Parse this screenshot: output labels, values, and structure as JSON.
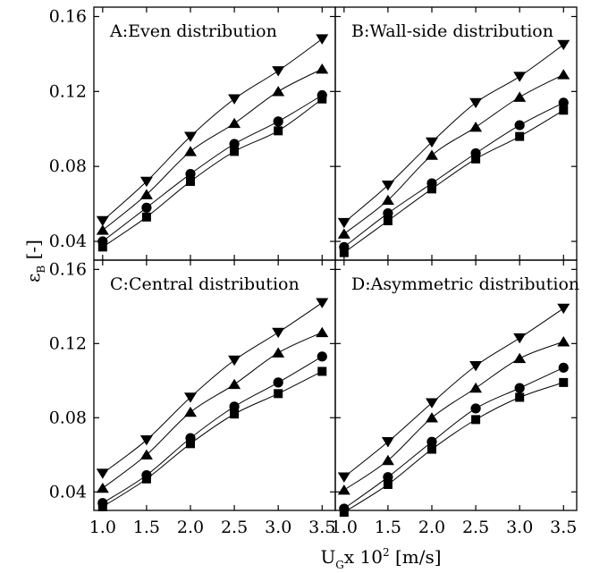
{
  "figure": {
    "xlabel": "U",
    "xlabel_sub": "G",
    "xlabel_rest": "x 10",
    "xlabel_sup": "2",
    "xlabel_unit": " [m/s]",
    "ylabel": "ε",
    "ylabel_sub": "B",
    "ylabel_unit": " [-]"
  },
  "chart_data": [
    {
      "type": "line",
      "title": "A:Even distribution",
      "xlim": [
        0.9,
        3.65
      ],
      "ylim": [
        0.03,
        0.165
      ],
      "x_ticks": [
        "1.0",
        "1.5",
        "2.0",
        "2.5",
        "3.0",
        "3.5"
      ],
      "y_ticks": [
        "0.04",
        "0.08",
        "0.12",
        "0.16"
      ],
      "x": [
        1.0,
        1.5,
        2.0,
        2.5,
        3.0,
        3.5
      ],
      "series": [
        {
          "marker": "triangle-down",
          "values": [
            0.051,
            0.072,
            0.096,
            0.116,
            0.131,
            0.148
          ]
        },
        {
          "marker": "triangle-up",
          "values": [
            0.046,
            0.065,
            0.088,
            0.103,
            0.12,
            0.132
          ]
        },
        {
          "marker": "circle",
          "values": [
            0.04,
            0.058,
            0.076,
            0.092,
            0.104,
            0.118
          ]
        },
        {
          "marker": "square",
          "values": [
            0.037,
            0.053,
            0.072,
            0.088,
            0.099,
            0.116
          ]
        }
      ]
    },
    {
      "type": "line",
      "title": "B:Wall-side distribution",
      "xlim": [
        0.9,
        3.65
      ],
      "ylim": [
        0.03,
        0.165
      ],
      "x_ticks": [
        "1.0",
        "1.5",
        "2.0",
        "2.5",
        "3.0",
        "3.5"
      ],
      "y_ticks": [
        "0.04",
        "0.08",
        "0.12",
        "0.16"
      ],
      "x": [
        1.0,
        1.5,
        2.0,
        2.5,
        3.0,
        3.5
      ],
      "series": [
        {
          "marker": "triangle-down",
          "values": [
            0.05,
            0.07,
            0.093,
            0.114,
            0.128,
            0.145
          ]
        },
        {
          "marker": "triangle-up",
          "values": [
            0.044,
            0.062,
            0.086,
            0.101,
            0.117,
            0.129
          ]
        },
        {
          "marker": "circle",
          "values": [
            0.037,
            0.055,
            0.071,
            0.087,
            0.102,
            0.114
          ]
        },
        {
          "marker": "square",
          "values": [
            0.034,
            0.051,
            0.068,
            0.084,
            0.096,
            0.11
          ]
        }
      ]
    },
    {
      "type": "line",
      "title": "C:Central distribution",
      "xlim": [
        0.9,
        3.65
      ],
      "ylim": [
        0.03,
        0.165
      ],
      "x_ticks": [
        "1.0",
        "1.5",
        "2.0",
        "2.5",
        "3.0",
        "3.5"
      ],
      "y_ticks": [
        "0.04",
        "0.08",
        "0.12",
        "0.16"
      ],
      "x": [
        1.0,
        1.5,
        2.0,
        2.5,
        3.0,
        3.5
      ],
      "series": [
        {
          "marker": "triangle-down",
          "values": [
            0.05,
            0.068,
            0.091,
            0.111,
            0.126,
            0.142
          ]
        },
        {
          "marker": "triangle-up",
          "values": [
            0.042,
            0.06,
            0.083,
            0.098,
            0.115,
            0.126
          ]
        },
        {
          "marker": "circle",
          "values": [
            0.034,
            0.049,
            0.069,
            0.086,
            0.099,
            0.113
          ]
        },
        {
          "marker": "square",
          "values": [
            0.032,
            0.047,
            0.066,
            0.082,
            0.093,
            0.105
          ]
        }
      ]
    },
    {
      "type": "line",
      "title": "D:Asymmetric distribution",
      "xlim": [
        0.9,
        3.65
      ],
      "ylim": [
        0.03,
        0.165
      ],
      "x_ticks": [
        "1.0",
        "1.5",
        "2.0",
        "2.5",
        "3.0",
        "3.5"
      ],
      "y_ticks": [
        "0.04",
        "0.08",
        "0.12",
        "0.16"
      ],
      "x": [
        1.0,
        1.5,
        2.0,
        2.5,
        3.0,
        3.5
      ],
      "series": [
        {
          "marker": "triangle-down",
          "values": [
            0.048,
            0.067,
            0.088,
            0.108,
            0.123,
            0.139
          ]
        },
        {
          "marker": "triangle-up",
          "values": [
            0.041,
            0.057,
            0.08,
            0.096,
            0.112,
            0.121
          ]
        },
        {
          "marker": "circle",
          "values": [
            0.031,
            0.048,
            0.067,
            0.085,
            0.096,
            0.107
          ]
        },
        {
          "marker": "square",
          "values": [
            0.029,
            0.044,
            0.063,
            0.079,
            0.091,
            0.099
          ]
        }
      ]
    }
  ]
}
